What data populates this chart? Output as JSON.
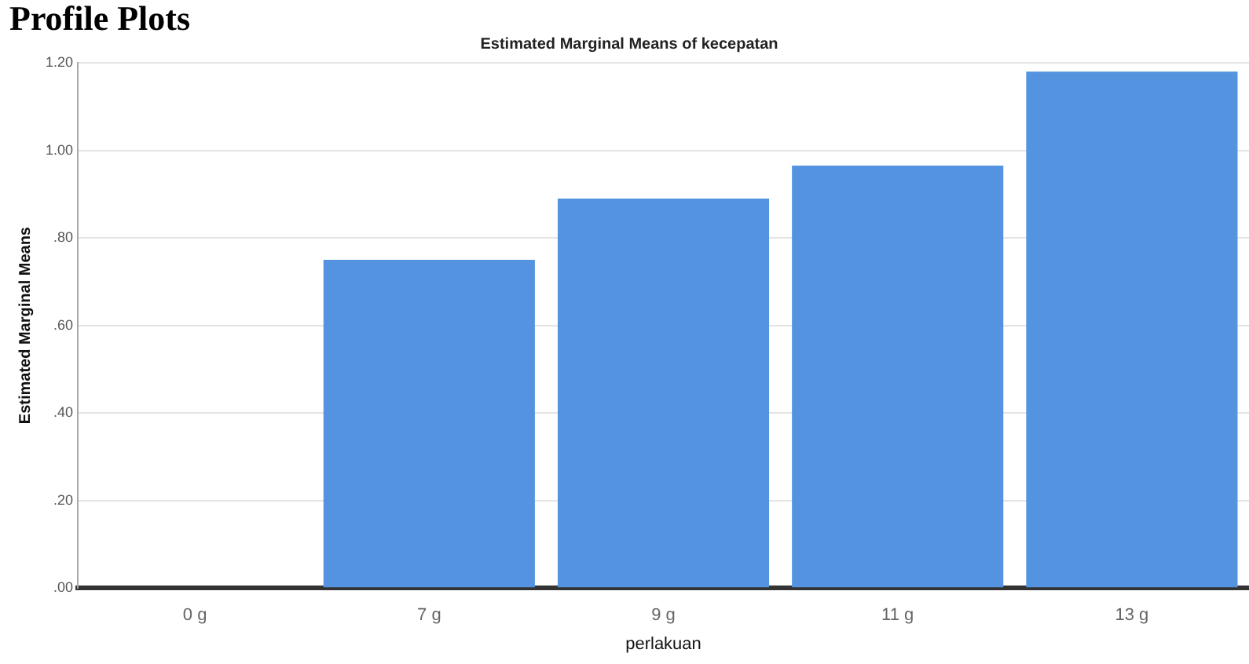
{
  "chart_data": {
    "type": "bar",
    "title": "Estimated Marginal Means of kecepatan",
    "xlabel": "perlakuan",
    "ylabel": "Estimated Marginal Means",
    "annotations": [
      "Profile Plots"
    ],
    "categories": [
      "0 g",
      "7 g",
      "9 g",
      "11 g",
      "13 g"
    ],
    "values": [
      0,
      0.75,
      0.89,
      0.965,
      1.18
    ],
    "color": "#5393e0",
    "ylim": [
      0,
      1.2
    ],
    "yticks": [
      {
        "value": 0,
        "label": ".00"
      },
      {
        "value": 0.2,
        "label": ".20"
      },
      {
        "value": 0.4,
        "label": ".40"
      },
      {
        "value": 0.6,
        "label": ".60"
      },
      {
        "value": 0.8,
        "label": ".80"
      },
      {
        "value": 1,
        "label": "1.00"
      },
      {
        "value": 1.2,
        "label": "1.20"
      }
    ],
    "grid": "y",
    "legend": false
  }
}
